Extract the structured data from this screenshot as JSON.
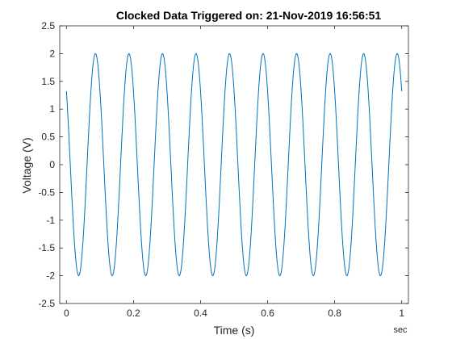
{
  "chart_data": {
    "type": "line",
    "title": "Clocked Data Triggered on: 21-Nov-2019 16:56:51",
    "xlabel": "Time (s)",
    "ylabel": "Voltage (V)",
    "x_unit_label": "sec",
    "xlim": [
      -0.02,
      1.02
    ],
    "ylim": [
      -2.5,
      2.5
    ],
    "x_ticks": [
      0,
      0.2,
      0.4,
      0.6,
      0.8,
      1
    ],
    "x_tick_labels": [
      "0",
      "0.2",
      "0.4",
      "0.6",
      "0.8",
      "1"
    ],
    "y_ticks": [
      -2.5,
      -2,
      -1.5,
      -1,
      -0.5,
      0,
      0.5,
      1,
      1.5,
      2,
      2.5
    ],
    "y_tick_labels": [
      "-2.5",
      "-2",
      "-1.5",
      "-1",
      "-0.5",
      "0",
      "0.5",
      "1",
      "1.5",
      "2",
      "2.5"
    ],
    "grid": false,
    "series": [
      {
        "x_start": 0,
        "x_end": 1,
        "amplitude": 2,
        "frequency_hz": 10,
        "phase_rad": 0.848,
        "sample_count": 1001,
        "color": "#0072BD"
      }
    ]
  }
}
